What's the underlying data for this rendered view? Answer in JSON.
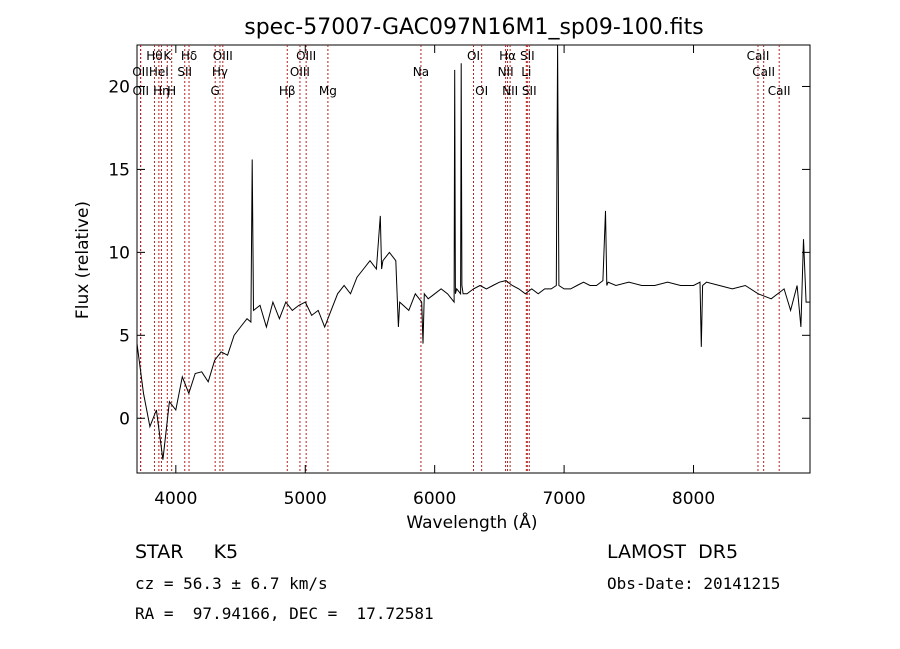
{
  "chart_data": {
    "type": "line",
    "title": "spec-57007-GAC097N16M1_sp09-100.fits",
    "xlabel": "Wavelength (Å)",
    "ylabel": "Flux (relative)",
    "xlim": [
      3700,
      8900
    ],
    "ylim": [
      -3.3,
      22.5
    ],
    "xticks": [
      {
        "value": 4000,
        "label": "4000"
      },
      {
        "value": 5000,
        "label": "5000"
      },
      {
        "value": 6000,
        "label": "6000"
      },
      {
        "value": 7000,
        "label": "7000"
      },
      {
        "value": 8000,
        "label": "8000"
      }
    ],
    "yticks": [
      {
        "value": 0,
        "label": "0"
      },
      {
        "value": 5,
        "label": "5"
      },
      {
        "value": 10,
        "label": "10"
      },
      {
        "value": 15,
        "label": "15"
      },
      {
        "value": 20,
        "label": "20"
      }
    ],
    "line_color": "#000000",
    "marker_color": "#b22222",
    "series": [
      {
        "x": [
          3700,
          3750,
          3800,
          3850,
          3900,
          3950,
          4000,
          4050,
          4100,
          4150,
          4200,
          4250,
          4300,
          4350,
          4400,
          4450,
          4500,
          4550,
          4580,
          4590,
          4600,
          4650,
          4700,
          4750,
          4800,
          4850,
          4900,
          4950,
          5000,
          5050,
          5100,
          5150,
          5200,
          5250,
          5300,
          5350,
          5400,
          5450,
          5500,
          5550,
          5580,
          5590,
          5600,
          5650,
          5700,
          5720,
          5730,
          5800,
          5850,
          5900,
          5910,
          5920,
          5950,
          6000,
          6050,
          6100,
          6150,
          6155,
          6160,
          6170,
          6200,
          6205,
          6210,
          6220,
          6250,
          6300,
          6350,
          6400,
          6450,
          6500,
          6550,
          6600,
          6650,
          6700,
          6750,
          6800,
          6850,
          6900,
          6940,
          6950,
          6960,
          7000,
          7050,
          7100,
          7150,
          7200,
          7250,
          7300,
          7320,
          7330,
          7340,
          7400,
          7500,
          7600,
          7700,
          7800,
          7900,
          8000,
          8050,
          8060,
          8070,
          8100,
          8200,
          8300,
          8400,
          8500,
          8600,
          8700,
          8750,
          8800,
          8830,
          8850,
          8870,
          8900
        ],
        "y": [
          4.5,
          1.5,
          -0.5,
          0.5,
          -2.5,
          1.0,
          0.5,
          2.5,
          1.5,
          2.7,
          2.8,
          2.2,
          3.5,
          4.0,
          3.8,
          5.0,
          5.5,
          6.0,
          5.8,
          15.6,
          6.5,
          6.8,
          5.5,
          7.0,
          6.0,
          7.0,
          6.5,
          6.8,
          7.0,
          6.2,
          6.5,
          5.5,
          6.5,
          7.5,
          8.0,
          7.5,
          8.5,
          9.0,
          9.5,
          9.0,
          12.2,
          9.0,
          9.5,
          10.0,
          9.5,
          5.5,
          7.0,
          6.5,
          7.5,
          7.0,
          4.5,
          7.5,
          7.2,
          7.5,
          7.8,
          7.5,
          7.0,
          21.0,
          7.5,
          7.8,
          7.5,
          21.4,
          8.0,
          7.5,
          7.5,
          7.8,
          8.0,
          7.8,
          8.0,
          8.2,
          8.3,
          8.0,
          7.8,
          7.5,
          7.8,
          7.5,
          7.8,
          7.8,
          8.0,
          22.5,
          8.0,
          7.8,
          7.8,
          8.0,
          8.2,
          8.0,
          8.0,
          8.3,
          12.5,
          8.0,
          8.2,
          8.0,
          8.2,
          8.0,
          8.0,
          8.2,
          8.0,
          8.0,
          8.2,
          4.3,
          8.0,
          8.2,
          8.0,
          7.8,
          8.0,
          7.5,
          7.2,
          7.8,
          6.5,
          8.0,
          5.5,
          10.8,
          7.0,
          7.0
        ]
      }
    ],
    "line_markers": [
      {
        "wave": 3835,
        "label": "Hθ",
        "row": 0
      },
      {
        "wave": 3889,
        "label": "Hη",
        "row": 2
      },
      {
        "wave": 3727,
        "label": "OII",
        "row": 1
      },
      {
        "wave": 3729,
        "label": "OII",
        "row": 2
      },
      {
        "wave": 3869,
        "label": "HeI",
        "row": 1
      },
      {
        "wave": 3934,
        "label": "K",
        "row": 0
      },
      {
        "wave": 3968,
        "label": "H",
        "row": 2
      },
      {
        "wave": 4069,
        "label": "SII",
        "row": 1
      },
      {
        "wave": 4102,
        "label": "Hδ",
        "row": 0
      },
      {
        "wave": 4304,
        "label": "G",
        "row": 2
      },
      {
        "wave": 4341,
        "label": "Hγ",
        "row": 1
      },
      {
        "wave": 4363,
        "label": "OIII",
        "row": 0
      },
      {
        "wave": 4861,
        "label": "Hβ",
        "row": 2
      },
      {
        "wave": 4959,
        "label": "OIII",
        "row": 1
      },
      {
        "wave": 5007,
        "label": "OIII",
        "row": 0
      },
      {
        "wave": 5175,
        "label": "Mg",
        "row": 2
      },
      {
        "wave": 5894,
        "label": "Na",
        "row": 1
      },
      {
        "wave": 6300,
        "label": "OI",
        "row": 0
      },
      {
        "wave": 6363,
        "label": "OI",
        "row": 2
      },
      {
        "wave": 6548,
        "label": "NII",
        "row": 1
      },
      {
        "wave": 6563,
        "label": "Hα",
        "row": 0
      },
      {
        "wave": 6583,
        "label": "NII",
        "row": 2
      },
      {
        "wave": 6708,
        "label": "Li",
        "row": 1
      },
      {
        "wave": 6716,
        "label": "SII",
        "row": 0
      },
      {
        "wave": 6731,
        "label": "SII",
        "row": 2
      },
      {
        "wave": 8498,
        "label": "CaII",
        "row": 0
      },
      {
        "wave": 8542,
        "label": "CaII",
        "row": 1
      },
      {
        "wave": 8662,
        "label": "CaII",
        "row": 2
      }
    ]
  },
  "info": {
    "classification": "STAR     K5",
    "survey": "LAMOST  DR5",
    "redshift": "cz = 56.3 ± 6.7 km/s",
    "obs_date": "Obs-Date: 20141215",
    "coords": "RA =  97.94166, DEC =  17.72581"
  }
}
